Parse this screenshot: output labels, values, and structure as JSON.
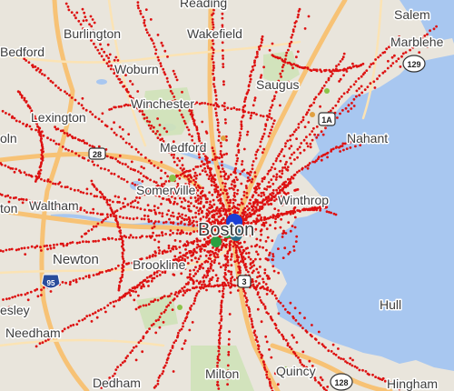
{
  "map": {
    "colors": {
      "land": "#e9e5dc",
      "water": "#a8c7f0",
      "park": "#cfe2b8",
      "highway": "#f7c275",
      "highway_casing": "#f0a64a",
      "road": "#fbe3b4",
      "route_dots": "#dd1111",
      "vehicle_green": "#2aa040",
      "vehicle_blue": "#1a3fd4",
      "vehicle_teal": "#2a6f8a",
      "stop_marker": "#8bc34a",
      "shield_interstate": "#2a4d9b",
      "shield_state_border": "#333333",
      "label_text": "#3d3d3d"
    },
    "place_labels": [
      {
        "id": "reading",
        "text": "Reading"
      },
      {
        "id": "salem",
        "text": "Salem"
      },
      {
        "id": "bedford",
        "text": "Bedford"
      },
      {
        "id": "burlington",
        "text": "Burlington"
      },
      {
        "id": "wakefield",
        "text": "Wakefield"
      },
      {
        "id": "marblehead",
        "text": "Marblehe"
      },
      {
        "id": "woburn",
        "text": "Woburn"
      },
      {
        "id": "saugus",
        "text": "Saugus"
      },
      {
        "id": "winchester",
        "text": "Winchester"
      },
      {
        "id": "lexington",
        "text": "Lexington"
      },
      {
        "id": "lincoln",
        "text": "oln"
      },
      {
        "id": "nahant",
        "text": "Nahant"
      },
      {
        "id": "medford",
        "text": "Medford"
      },
      {
        "id": "somerville",
        "text": "Somerville"
      },
      {
        "id": "winthrop",
        "text": "Winthrop"
      },
      {
        "id": "waltham",
        "text": "Waltham"
      },
      {
        "id": "boston",
        "text": "Boston"
      },
      {
        "id": "weston",
        "text": "ton"
      },
      {
        "id": "newton",
        "text": "Newton"
      },
      {
        "id": "brookline",
        "text": "Brookline"
      },
      {
        "id": "hull",
        "text": "Hull"
      },
      {
        "id": "wellesley",
        "text": "esley"
      },
      {
        "id": "needham",
        "text": "Needham"
      },
      {
        "id": "dedham",
        "text": "Dedham"
      },
      {
        "id": "milton",
        "text": "Milton"
      },
      {
        "id": "quincy",
        "text": "Quincy"
      },
      {
        "id": "hingham",
        "text": "Hingham"
      }
    ],
    "shields": [
      {
        "id": "i95",
        "text": "95",
        "kind": "interstate"
      },
      {
        "id": "rt129",
        "text": "129",
        "kind": "state"
      },
      {
        "id": "rt1a",
        "text": "1A",
        "kind": "us"
      },
      {
        "id": "rt28",
        "text": "28",
        "kind": "state"
      },
      {
        "id": "rt3",
        "text": "3",
        "kind": "state"
      },
      {
        "id": "rt128",
        "text": "128",
        "kind": "state"
      }
    ]
  }
}
